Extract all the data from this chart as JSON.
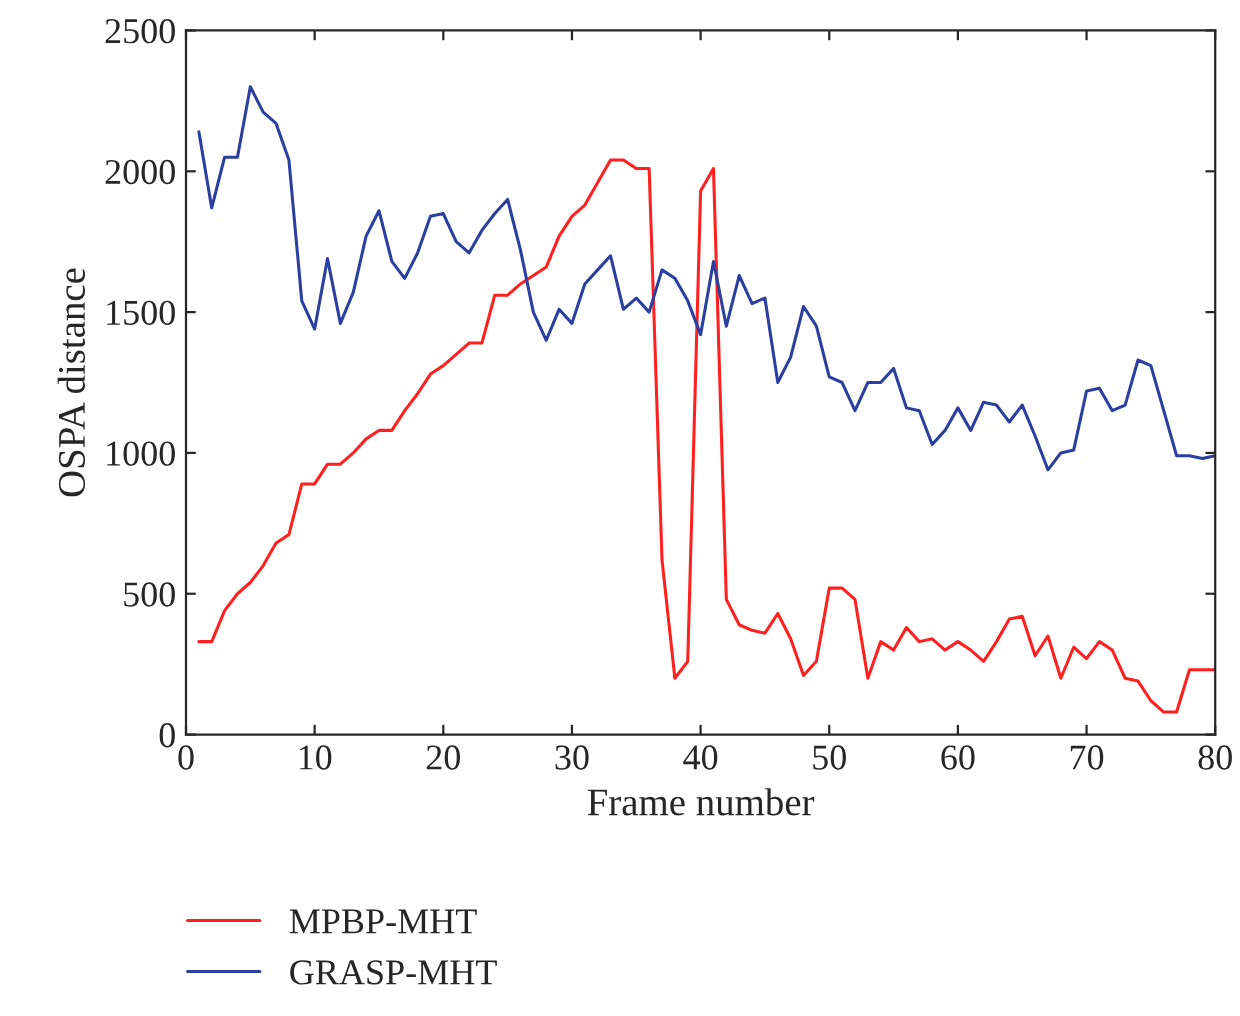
{
  "chart_data": {
    "type": "line",
    "xlabel": "Frame number",
    "ylabel": "OSPA distance",
    "x": [
      1,
      2,
      3,
      4,
      5,
      6,
      7,
      8,
      9,
      10,
      11,
      12,
      13,
      14,
      15,
      16,
      17,
      18,
      19,
      20,
      21,
      22,
      23,
      24,
      25,
      26,
      27,
      28,
      29,
      30,
      31,
      32,
      33,
      34,
      35,
      36,
      37,
      38,
      39,
      40,
      41,
      42,
      43,
      44,
      45,
      46,
      47,
      48,
      49,
      50,
      51,
      52,
      53,
      54,
      55,
      56,
      57,
      58,
      59,
      60,
      61,
      62,
      63,
      64,
      65,
      66,
      67,
      68,
      69,
      70,
      71,
      72,
      73,
      74,
      75,
      76,
      77,
      78,
      79,
      80
    ],
    "series": [
      {
        "name": "MPBP-MHT",
        "color": "#ff2020",
        "values": [
          330,
          330,
          440,
          500,
          540,
          600,
          680,
          710,
          890,
          890,
          960,
          960,
          1000,
          1050,
          1080,
          1080,
          1150,
          1210,
          1280,
          1310,
          1350,
          1390,
          1390,
          1560,
          1560,
          1600,
          1630,
          1660,
          1770,
          1840,
          1880,
          1960,
          2040,
          2040,
          2010,
          2010,
          620,
          200,
          260,
          1930,
          2010,
          480,
          390,
          370,
          360,
          430,
          340,
          210,
          260,
          520,
          520,
          480,
          200,
          330,
          300,
          380,
          330,
          340,
          300,
          330,
          300,
          260,
          330,
          410,
          420,
          280,
          350,
          200,
          310,
          270,
          330,
          300,
          200,
          190,
          120,
          80,
          80,
          230,
          230,
          230
        ]
      },
      {
        "name": "GRASP-MHT",
        "color": "#2a3f9f",
        "values": [
          2140,
          1870,
          2050,
          2050,
          2300,
          2210,
          2170,
          2040,
          1540,
          1440,
          1690,
          1460,
          1570,
          1770,
          1860,
          1680,
          1620,
          1710,
          1840,
          1850,
          1750,
          1710,
          1790,
          1850,
          1900,
          1720,
          1500,
          1400,
          1510,
          1460,
          1600,
          1650,
          1700,
          1510,
          1550,
          1500,
          1650,
          1620,
          1540,
          1420,
          1680,
          1450,
          1630,
          1530,
          1550,
          1250,
          1340,
          1520,
          1450,
          1270,
          1250,
          1150,
          1250,
          1250,
          1300,
          1160,
          1150,
          1030,
          1080,
          1160,
          1080,
          1180,
          1170,
          1110,
          1170,
          1060,
          940,
          1000,
          1010,
          1220,
          1230,
          1150,
          1170,
          1330,
          1310,
          1150,
          990,
          990,
          980,
          990
        ]
      }
    ],
    "xlim": [
      0,
      80
    ],
    "xticks": [
      0,
      10,
      20,
      30,
      40,
      50,
      60,
      70,
      80
    ],
    "ylim": [
      0,
      2500
    ],
    "yticks": [
      0,
      500,
      1000,
      1500,
      2000,
      2500
    ],
    "grid": false,
    "legend": "bottom",
    "marker": "none",
    "line_style": "solid"
  }
}
